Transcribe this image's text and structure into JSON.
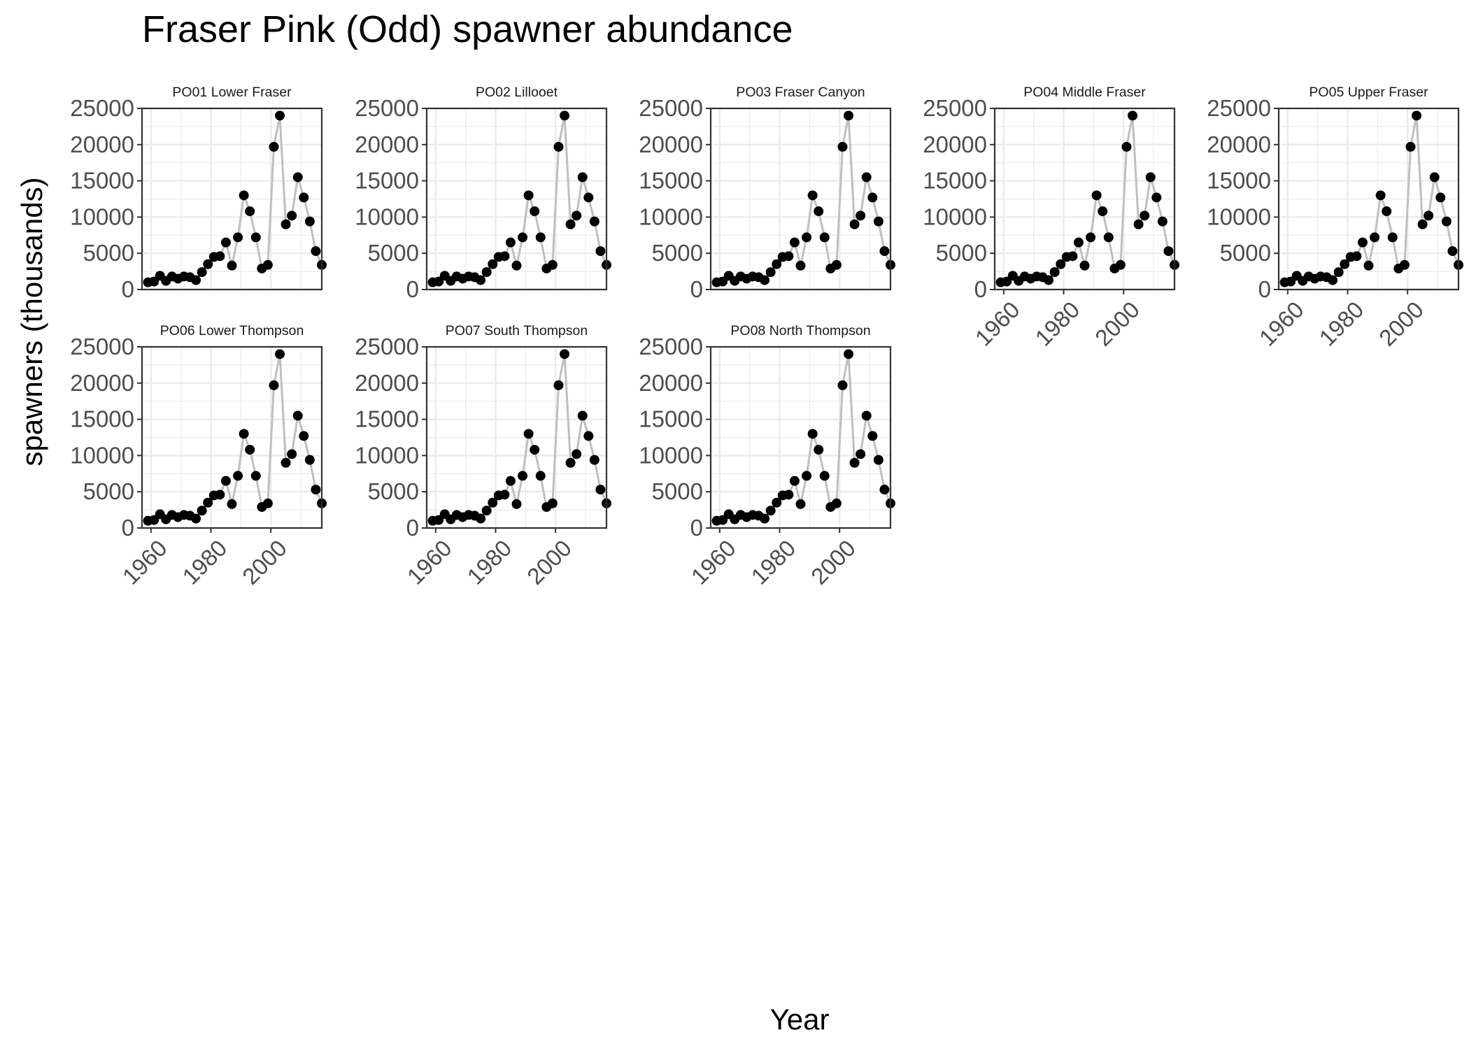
{
  "chart_data": {
    "type": "line",
    "title": "Fraser Pink (Odd) spawner abundance",
    "xlabel": "Year",
    "ylabel": "spawners (thousands)",
    "xlim": [
      1957,
      2017
    ],
    "ylim": [
      0,
      25000
    ],
    "x_ticks": [
      1960,
      1980,
      2000
    ],
    "x_tick_labels": [
      "1960",
      "1980",
      "2000"
    ],
    "y_ticks": [
      0,
      5000,
      10000,
      15000,
      20000,
      25000
    ],
    "y_tick_labels": [
      "0",
      "5000",
      "10000",
      "15000",
      "20000",
      "25000"
    ],
    "grid": true,
    "legend": "none",
    "colors": {
      "points": "#000000",
      "line": "#bfbfbf",
      "grid": "#ebebeb",
      "panel_border": "#333333"
    },
    "panels": [
      {
        "name": "PO01 Lower Fraser"
      },
      {
        "name": "PO02 Lillooet"
      },
      {
        "name": "PO03 Fraser Canyon"
      },
      {
        "name": "PO04 Middle Fraser"
      },
      {
        "name": "PO05 Upper Fraser"
      },
      {
        "name": "PO06 Lower Thompson"
      },
      {
        "name": "PO07 South Thompson"
      },
      {
        "name": "PO08 North Thompson"
      }
    ],
    "x": [
      1959,
      1961,
      1963,
      1965,
      1967,
      1969,
      1971,
      1973,
      1975,
      1977,
      1979,
      1981,
      1983,
      1985,
      1987,
      1989,
      1991,
      1993,
      1995,
      1997,
      1999,
      2001,
      2003,
      2005,
      2007,
      2009,
      2011,
      2013,
      2015,
      2017
    ],
    "y": [
      1000,
      1100,
      1900,
      1200,
      1800,
      1500,
      1800,
      1700,
      1300,
      2400,
      3500,
      4500,
      4600,
      6500,
      3300,
      7200,
      13000,
      10800,
      7200,
      2900,
      3400,
      19700,
      24000,
      9000,
      10200,
      15500,
      12700,
      9400,
      5300,
      3400
    ]
  }
}
